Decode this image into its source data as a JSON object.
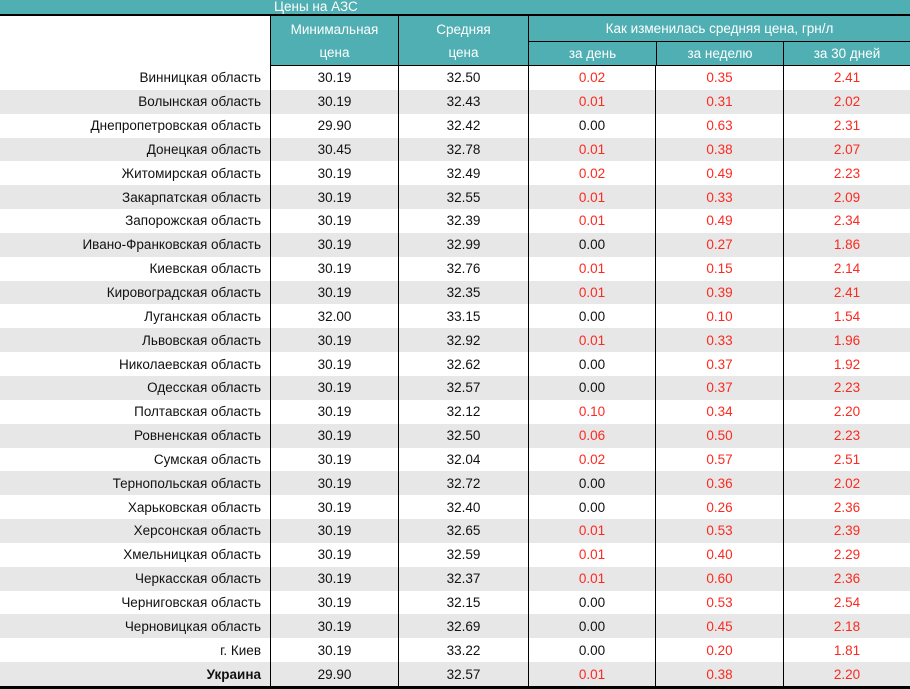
{
  "chart_data": {
    "type": "table",
    "title": "Цены на АЗС",
    "header": {
      "region_col": "",
      "min_price": "Минимальная\nцена",
      "avg_price": "Средняя\nцена",
      "change_group": "Как изменилась средняя цена, грн/л",
      "change_day": "за день",
      "change_week": "за неделю",
      "change_month": "за 30 дней"
    },
    "value_color_rule": "change values are red unless 0.00 (black); price columns always black",
    "colors": {
      "accent_teal": "#4fafb3",
      "row_alt": "#e7e7e7",
      "negative_red": "#fb2a20",
      "border_black": "#000000"
    },
    "rows": [
      {
        "region": "Винницкая область",
        "min": "30.19",
        "avg": "32.50",
        "day": "0.02",
        "week": "0.35",
        "month": "2.41"
      },
      {
        "region": "Волынская область",
        "min": "30.19",
        "avg": "32.43",
        "day": "0.01",
        "week": "0.31",
        "month": "2.02"
      },
      {
        "region": "Днепропетровская область",
        "min": "29.90",
        "avg": "32.42",
        "day": "0.00",
        "week": "0.63",
        "month": "2.31"
      },
      {
        "region": "Донецкая область",
        "min": "30.45",
        "avg": "32.78",
        "day": "0.01",
        "week": "0.38",
        "month": "2.07"
      },
      {
        "region": "Житомирская область",
        "min": "30.19",
        "avg": "32.49",
        "day": "0.02",
        "week": "0.49",
        "month": "2.23"
      },
      {
        "region": "Закарпатская область",
        "min": "30.19",
        "avg": "32.55",
        "day": "0.01",
        "week": "0.33",
        "month": "2.09"
      },
      {
        "region": "Запорожская область",
        "min": "30.19",
        "avg": "32.39",
        "day": "0.01",
        "week": "0.49",
        "month": "2.34"
      },
      {
        "region": "Ивано-Франковская область",
        "min": "30.19",
        "avg": "32.99",
        "day": "0.00",
        "week": "0.27",
        "month": "1.86"
      },
      {
        "region": "Киевская область",
        "min": "30.19",
        "avg": "32.76",
        "day": "0.01",
        "week": "0.15",
        "month": "2.14"
      },
      {
        "region": "Кировоградская область",
        "min": "30.19",
        "avg": "32.35",
        "day": "0.01",
        "week": "0.39",
        "month": "2.41"
      },
      {
        "region": "Луганская область",
        "min": "32.00",
        "avg": "33.15",
        "day": "0.00",
        "week": "0.10",
        "month": "1.54"
      },
      {
        "region": "Львовская область",
        "min": "30.19",
        "avg": "32.92",
        "day": "0.01",
        "week": "0.33",
        "month": "1.96"
      },
      {
        "region": "Николаевская область",
        "min": "30.19",
        "avg": "32.62",
        "day": "0.00",
        "week": "0.37",
        "month": "1.92"
      },
      {
        "region": "Одесская область",
        "min": "30.19",
        "avg": "32.57",
        "day": "0.00",
        "week": "0.37",
        "month": "2.23"
      },
      {
        "region": "Полтавская область",
        "min": "30.19",
        "avg": "32.12",
        "day": "0.10",
        "week": "0.34",
        "month": "2.20"
      },
      {
        "region": "Ровненская область",
        "min": "30.19",
        "avg": "32.50",
        "day": "0.06",
        "week": "0.50",
        "month": "2.23"
      },
      {
        "region": "Сумская область",
        "min": "30.19",
        "avg": "32.04",
        "day": "0.02",
        "week": "0.57",
        "month": "2.51"
      },
      {
        "region": "Тернопольская область",
        "min": "30.19",
        "avg": "32.72",
        "day": "0.00",
        "week": "0.36",
        "month": "2.02"
      },
      {
        "region": "Харьковская область",
        "min": "30.19",
        "avg": "32.40",
        "day": "0.00",
        "week": "0.26",
        "month": "2.36"
      },
      {
        "region": "Херсонская область",
        "min": "30.19",
        "avg": "32.65",
        "day": "0.01",
        "week": "0.53",
        "month": "2.39"
      },
      {
        "region": "Хмельницкая область",
        "min": "30.19",
        "avg": "32.59",
        "day": "0.01",
        "week": "0.40",
        "month": "2.29"
      },
      {
        "region": "Черкасская область",
        "min": "30.19",
        "avg": "32.37",
        "day": "0.01",
        "week": "0.60",
        "month": "2.36"
      },
      {
        "region": "Черниговская область",
        "min": "30.19",
        "avg": "32.15",
        "day": "0.00",
        "week": "0.53",
        "month": "2.54"
      },
      {
        "region": "Черновицкая область",
        "min": "30.19",
        "avg": "32.69",
        "day": "0.00",
        "week": "0.45",
        "month": "2.18"
      },
      {
        "region": "г. Киев",
        "min": "30.19",
        "avg": "33.22",
        "day": "0.00",
        "week": "0.20",
        "month": "1.81"
      },
      {
        "region": "Украина",
        "min": "29.90",
        "avg": "32.57",
        "day": "0.01",
        "week": "0.38",
        "month": "2.20"
      }
    ]
  }
}
